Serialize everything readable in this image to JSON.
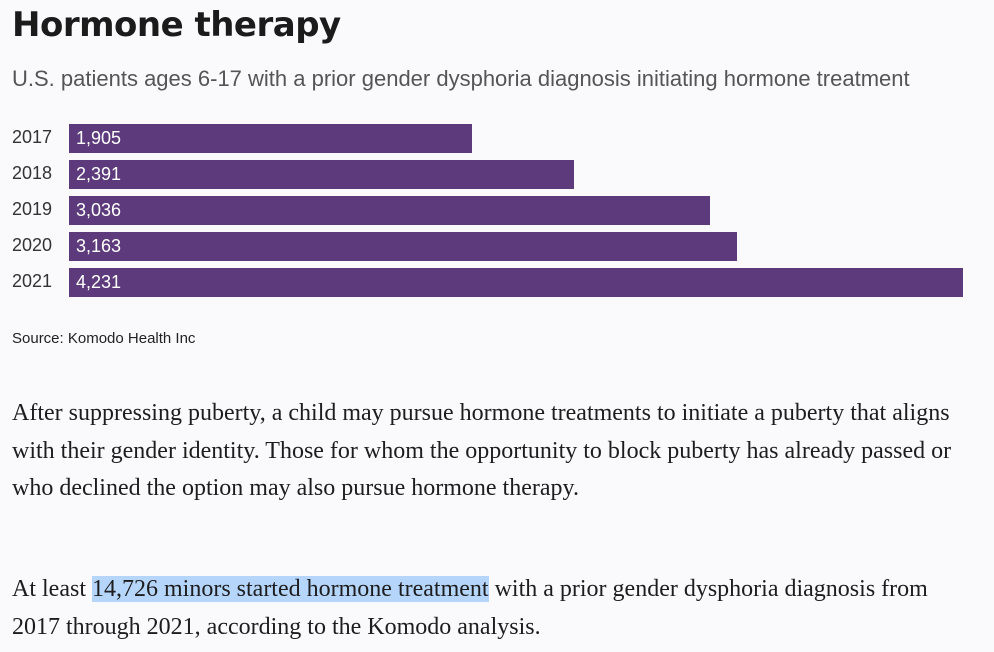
{
  "title": "Hormone therapy",
  "subtitle": "U.S. patients ages 6-17 with a prior gender dysphoria diagnosis initiating hormone treatment",
  "colors": {
    "bar": "#5c3a7b",
    "highlight": "#b5d5fb",
    "background": "#fafafc"
  },
  "chart_data": {
    "type": "bar",
    "orientation": "horizontal",
    "categories": [
      "2017",
      "2018",
      "2019",
      "2020",
      "2021"
    ],
    "values": [
      1905,
      2391,
      3036,
      3163,
      4231
    ],
    "value_labels": [
      "1,905",
      "2,391",
      "3,036",
      "3,163",
      "4,231"
    ],
    "title": "Hormone therapy",
    "subtitle": "U.S. patients ages 6-17 with a prior gender dysphoria diagnosis initiating hormone treatment",
    "xlabel": "",
    "ylabel": "",
    "xlim": [
      0,
      4231
    ],
    "grid": false,
    "legend": "none"
  },
  "source": "Source: Komodo Health Inc",
  "paragraphs": {
    "p1": "After suppressing puberty, a child may pursue hormone treatments to initiate a puberty that aligns with their gender identity. Those for whom the opportunity to block puberty has already passed or who declined the option may also pursue hormone therapy.",
    "p2_before": "At least ",
    "p2_highlight": "14,726 minors started hormone treatment",
    "p2_after": " with a prior gender dysphoria diagnosis from 2017 through 2021, according to the Komodo analysis."
  }
}
